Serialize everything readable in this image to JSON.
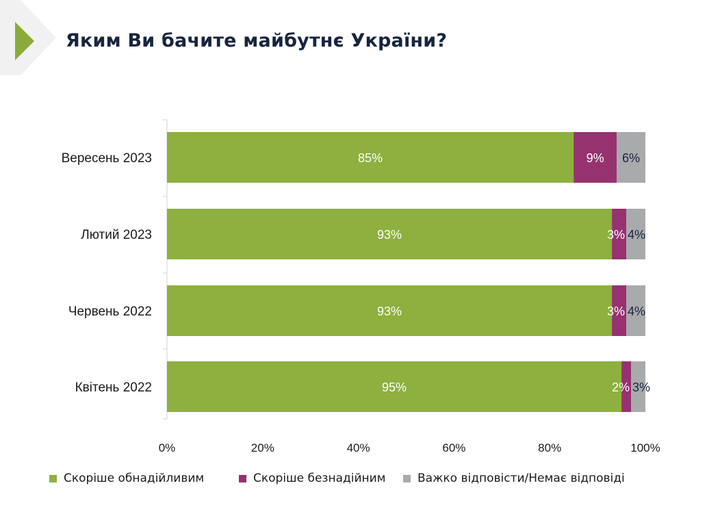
{
  "title": "Яким Ви бачите майбутнє України?",
  "chart_data": {
    "type": "bar",
    "orientation": "horizontal",
    "stacked": true,
    "title": "Яким Ви бачите майбутнє України?",
    "categories": [
      "Вересень 2023",
      "Лютий 2023",
      "Червень 2022",
      "Квітень 2022"
    ],
    "series": [
      {
        "name": "Скоріше обнадійливим",
        "color": "#8db03e",
        "values": [
          85,
          93,
          93,
          95
        ],
        "labels": [
          "85%",
          "93%",
          "93%",
          "95%"
        ]
      },
      {
        "name": "Скоріше безнадійним",
        "color": "#96326f",
        "values": [
          9,
          3,
          3,
          2
        ],
        "labels": [
          "9%",
          "3%",
          "3%",
          "2%"
        ]
      },
      {
        "name": "Важко відповісти/Немає відповіді",
        "color": "#a9aaac",
        "values": [
          6,
          4,
          4,
          3
        ],
        "labels": [
          "6%",
          "4%",
          "4%",
          "3%"
        ]
      }
    ],
    "xlim": [
      0,
      100
    ],
    "xticks": [
      "0%",
      "20%",
      "40%",
      "60%",
      "80%",
      "100%"
    ],
    "legend_position": "bottom",
    "grid": false
  }
}
